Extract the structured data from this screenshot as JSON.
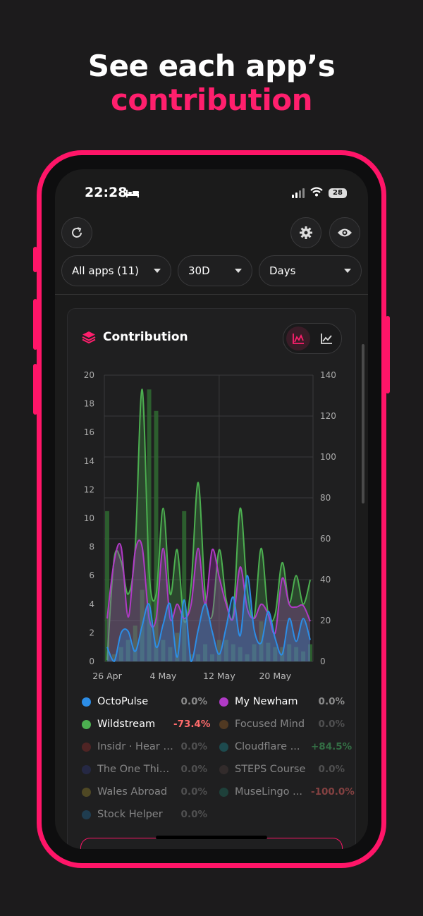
{
  "headline": {
    "line1": "See each app’s",
    "line2": "contribution"
  },
  "status_bar": {
    "time": "22:28",
    "battery": "28"
  },
  "controls": {
    "refresh_icon": "refresh-icon",
    "settings_icon": "gear-icon",
    "visibility_icon": "eye-icon",
    "app_filter": "All apps (11)",
    "range_filter": "30D",
    "granularity_filter": "Days"
  },
  "card": {
    "title": "Contribution",
    "chart_toggle": {
      "active": "area-chart-icon",
      "inactive": "line-chart-icon"
    }
  },
  "chart_data": {
    "type": "area",
    "title": "",
    "x_tick_labels": [
      "26 Apr",
      "4 May",
      "12 May",
      "20 May"
    ],
    "y_left_ticks": [
      0,
      2,
      4,
      6,
      8,
      10,
      12,
      14,
      16,
      18,
      20
    ],
    "y_right_ticks": [
      0,
      20,
      40,
      60,
      80,
      100,
      120,
      140
    ],
    "ylim_left": [
      0,
      20
    ],
    "ylim_right": [
      0,
      140
    ],
    "grid": true,
    "days": [
      "26 Apr",
      "27 Apr",
      "28 Apr",
      "29 Apr",
      "30 Apr",
      "1 May",
      "2 May",
      "3 May",
      "4 May",
      "5 May",
      "6 May",
      "7 May",
      "8 May",
      "9 May",
      "10 May",
      "11 May",
      "12 May",
      "13 May",
      "14 May",
      "15 May",
      "16 May",
      "17 May",
      "18 May",
      "19 May",
      "20 May",
      "21 May",
      "22 May",
      "23 May",
      "24 May",
      "25 May"
    ],
    "bars": {
      "color": "#2f6a31",
      "values": [
        10.5,
        0.5,
        1.0,
        1.5,
        2.5,
        5.0,
        19.0,
        17.5,
        1.5,
        1.0,
        2.0,
        10.5,
        0.5,
        0.5,
        1.2,
        0.5,
        1.5,
        1.5,
        1.2,
        1.0,
        0.5,
        1.2,
        2.8,
        1.3,
        1.0,
        1.0,
        1.2,
        1.0,
        0.7,
        1.2
      ]
    },
    "series": [
      {
        "name": "Wildstream",
        "color": "#4caf50",
        "values": [
          0.1,
          7.2,
          7.0,
          4.7,
          7.9,
          19.0,
          6.2,
          4.7,
          10.7,
          4.7,
          7.8,
          2.8,
          5.4,
          12.5,
          4.7,
          3.2,
          7.8,
          4.3,
          3.3,
          10.7,
          5.0,
          3.1,
          7.9,
          3.3,
          3.3,
          6.9,
          4.1,
          6.0,
          4.0,
          5.7
        ]
      },
      {
        "name": "My Newham",
        "color": "#b03ac6",
        "values": [
          3.0,
          7.0,
          8.0,
          3.1,
          7.7,
          8.0,
          3.0,
          3.0,
          7.9,
          3.0,
          4.0,
          3.0,
          4.0,
          7.9,
          4.0,
          7.8,
          5.9,
          4.0,
          3.0,
          6.6,
          3.7,
          3.0,
          4.0,
          3.3,
          2.0,
          5.8,
          4.0,
          3.8,
          3.9,
          2.8
        ]
      },
      {
        "name": "OctoPulse",
        "color": "#2c8de6",
        "values": [
          1.0,
          0.0,
          2.0,
          2.1,
          0.7,
          2.5,
          4.0,
          1.0,
          2.6,
          4.0,
          0.3,
          4.3,
          0.0,
          2.2,
          4.0,
          2.1,
          0.5,
          2.4,
          4.5,
          1.8,
          6.0,
          2.2,
          1.3,
          3.5,
          1.6,
          0.5,
          3.0,
          1.4,
          3.0,
          1.5
        ]
      }
    ]
  },
  "legend": [
    {
      "name": "OctoPulse",
      "pct": "0.0%",
      "color": "#2c8de6",
      "dim": false,
      "trend": "neutral"
    },
    {
      "name": "My Newham",
      "pct": "0.0%",
      "color": "#b03ac6",
      "dim": false,
      "trend": "neutral"
    },
    {
      "name": "Wildstream",
      "pct": "-73.4%",
      "color": "#4caf50",
      "dim": false,
      "trend": "down"
    },
    {
      "name": "Focused Mind",
      "pct": "0.0%",
      "color": "#8d5a25",
      "dim": true,
      "trend": "neutral"
    },
    {
      "name": "Insidr · Hear U...",
      "pct": "0.0%",
      "color": "#8a2b2b",
      "dim": true,
      "trend": "neutral"
    },
    {
      "name": "Cloudflare ...",
      "pct": "+84.5%",
      "color": "#1c7f86",
      "dim": true,
      "trend": "up"
    },
    {
      "name": "The One Thin...",
      "pct": "0.0%",
      "color": "#2c3470",
      "dim": true,
      "trend": "neutral"
    },
    {
      "name": "STEPS Course",
      "pct": "0.0%",
      "color": "#4a3a3a",
      "dim": true,
      "trend": "neutral"
    },
    {
      "name": "Wales Abroad",
      "pct": "0.0%",
      "color": "#8a7a2a",
      "dim": true,
      "trend": "neutral"
    },
    {
      "name": "MuseLingo ...",
      "pct": "-100.0%",
      "color": "#1d6a5a",
      "dim": true,
      "trend": "down"
    },
    {
      "name": "Stock Helper",
      "pct": "0.0%",
      "color": "#1f5f8a",
      "dim": true,
      "trend": "neutral"
    }
  ]
}
